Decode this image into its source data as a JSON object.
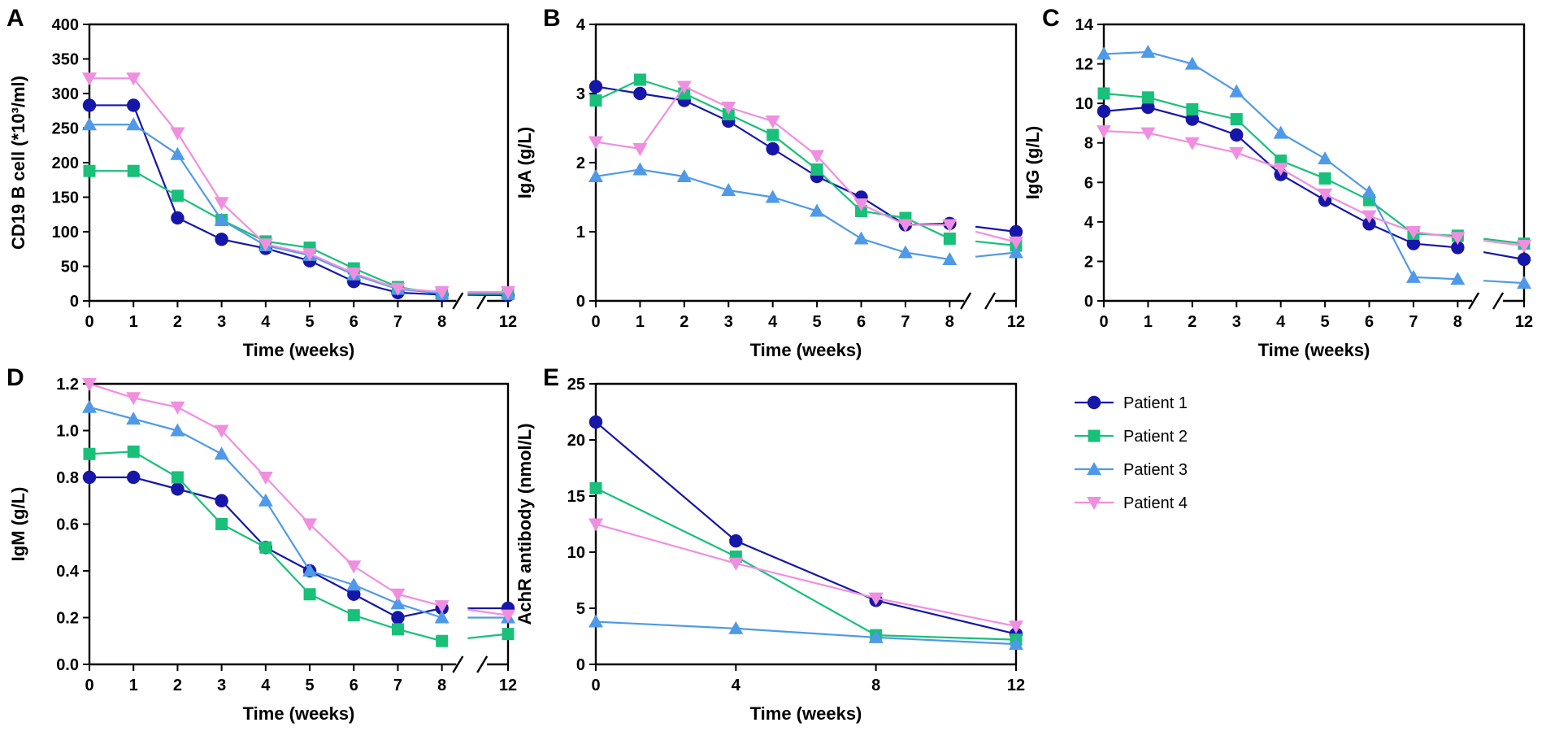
{
  "legend": [
    {
      "name": "Patient 1",
      "color": "#1616a8",
      "marker": "circle"
    },
    {
      "name": "Patient 2",
      "color": "#18c07a",
      "marker": "square"
    },
    {
      "name": "Patient 3",
      "color": "#4f9ae8",
      "marker": "triangle-up"
    },
    {
      "name": "Patient 4",
      "color": "#f08ee0",
      "marker": "triangle-down"
    }
  ],
  "chart_data": [
    {
      "panel": "A",
      "type": "line",
      "ylabel": "CD19 B cell (*10³/ml)",
      "xlabel": "Time (weeks)",
      "ylim": [
        0,
        400
      ],
      "yticks": [
        0,
        50,
        100,
        150,
        200,
        250,
        300,
        350,
        400
      ],
      "xticks": [
        0,
        1,
        2,
        3,
        4,
        5,
        6,
        7,
        8,
        12
      ],
      "axis_break": true,
      "x": [
        0,
        1,
        2,
        3,
        4,
        5,
        6,
        7,
        8,
        12
      ],
      "series": [
        {
          "name": "Patient 1",
          "values": [
            283,
            283,
            120,
            89,
            76,
            58,
            28,
            12,
            9,
            8
          ]
        },
        {
          "name": "Patient 2",
          "values": [
            188,
            188,
            152,
            117,
            86,
            77,
            47,
            20,
            10,
            10
          ]
        },
        {
          "name": "Patient 3",
          "values": [
            255,
            255,
            212,
            117,
            80,
            66,
            38,
            17,
            11,
            11
          ]
        },
        {
          "name": "Patient 4",
          "values": [
            322,
            322,
            243,
            142,
            82,
            68,
            40,
            18,
            13,
            13
          ]
        }
      ]
    },
    {
      "panel": "B",
      "type": "line",
      "ylabel": "IgA (g/L)",
      "xlabel": "Time (weeks)",
      "ylim": [
        0,
        4
      ],
      "yticks": [
        0,
        1,
        2,
        3,
        4
      ],
      "xticks": [
        0,
        1,
        2,
        3,
        4,
        5,
        6,
        7,
        8,
        12
      ],
      "axis_break": true,
      "x": [
        0,
        1,
        2,
        3,
        4,
        5,
        6,
        7,
        8,
        12
      ],
      "series": [
        {
          "name": "Patient 1",
          "values": [
            3.1,
            3.0,
            2.9,
            2.6,
            2.2,
            1.8,
            1.5,
            1.1,
            1.12,
            1.0
          ]
        },
        {
          "name": "Patient 2",
          "values": [
            2.9,
            3.2,
            3.0,
            2.7,
            2.4,
            1.9,
            1.3,
            1.2,
            0.9,
            0.8
          ]
        },
        {
          "name": "Patient 3",
          "values": [
            1.8,
            1.9,
            1.8,
            1.6,
            1.5,
            1.3,
            0.9,
            0.7,
            0.6,
            0.7
          ]
        },
        {
          "name": "Patient 4",
          "values": [
            2.3,
            2.2,
            3.1,
            2.8,
            2.6,
            2.1,
            1.4,
            1.1,
            1.1,
            0.85
          ]
        }
      ]
    },
    {
      "panel": "C",
      "type": "line",
      "ylabel": "IgG (g/L)",
      "xlabel": "Time (weeks)",
      "ylim": [
        0,
        14
      ],
      "yticks": [
        0,
        2,
        4,
        6,
        8,
        10,
        12,
        14
      ],
      "xticks": [
        0,
        1,
        2,
        3,
        4,
        5,
        6,
        7,
        8,
        12
      ],
      "axis_break": true,
      "x": [
        0,
        1,
        2,
        3,
        4,
        5,
        6,
        7,
        8,
        12
      ],
      "series": [
        {
          "name": "Patient 1",
          "values": [
            9.6,
            9.8,
            9.2,
            8.4,
            6.4,
            5.1,
            3.9,
            2.9,
            2.7,
            2.1
          ]
        },
        {
          "name": "Patient 2",
          "values": [
            10.5,
            10.3,
            9.7,
            9.2,
            7.1,
            6.2,
            5.1,
            3.4,
            3.3,
            2.9
          ]
        },
        {
          "name": "Patient 3",
          "values": [
            12.5,
            12.6,
            12.0,
            10.6,
            8.5,
            7.2,
            5.5,
            1.2,
            1.1,
            0.9
          ]
        },
        {
          "name": "Patient 4",
          "values": [
            8.6,
            8.5,
            8.0,
            7.5,
            6.7,
            5.4,
            4.3,
            3.5,
            3.2,
            2.8
          ]
        }
      ]
    },
    {
      "panel": "D",
      "type": "line",
      "ylabel": "IgM (g/L)",
      "xlabel": "Time (weeks)",
      "ylim": [
        0,
        1.2
      ],
      "yticks": [
        0.0,
        0.2,
        0.4,
        0.6,
        0.8,
        1.0,
        1.2
      ],
      "xticks": [
        0,
        1,
        2,
        3,
        4,
        5,
        6,
        7,
        8,
        12
      ],
      "axis_break": true,
      "x": [
        0,
        1,
        2,
        3,
        4,
        5,
        6,
        7,
        8,
        12
      ],
      "series": [
        {
          "name": "Patient 1",
          "values": [
            0.8,
            0.8,
            0.75,
            0.7,
            0.5,
            0.4,
            0.3,
            0.2,
            0.24,
            0.24
          ]
        },
        {
          "name": "Patient 2",
          "values": [
            0.9,
            0.91,
            0.8,
            0.6,
            0.5,
            0.3,
            0.21,
            0.15,
            0.1,
            0.13
          ]
        },
        {
          "name": "Patient 3",
          "values": [
            1.1,
            1.05,
            1.0,
            0.9,
            0.7,
            0.4,
            0.34,
            0.26,
            0.2,
            0.2
          ]
        },
        {
          "name": "Patient 4",
          "values": [
            1.2,
            1.14,
            1.1,
            1.0,
            0.8,
            0.6,
            0.42,
            0.3,
            0.25,
            0.21
          ]
        }
      ]
    },
    {
      "panel": "E",
      "type": "line",
      "ylabel": "AchR antibody (nmol/L)",
      "xlabel": "Time (weeks)",
      "ylim": [
        0,
        25
      ],
      "yticks": [
        0,
        5,
        10,
        15,
        20,
        25
      ],
      "xticks": [
        0,
        4,
        8,
        12
      ],
      "axis_break": false,
      "x": [
        0,
        4,
        8,
        12
      ],
      "series": [
        {
          "name": "Patient 1",
          "values": [
            21.6,
            11.0,
            5.7,
            2.7
          ]
        },
        {
          "name": "Patient 2",
          "values": [
            15.7,
            9.6,
            2.6,
            2.2
          ]
        },
        {
          "name": "Patient 3",
          "values": [
            3.8,
            3.2,
            2.4,
            1.8
          ]
        },
        {
          "name": "Patient 4",
          "values": [
            12.5,
            9.0,
            5.9,
            3.4
          ]
        }
      ]
    }
  ]
}
